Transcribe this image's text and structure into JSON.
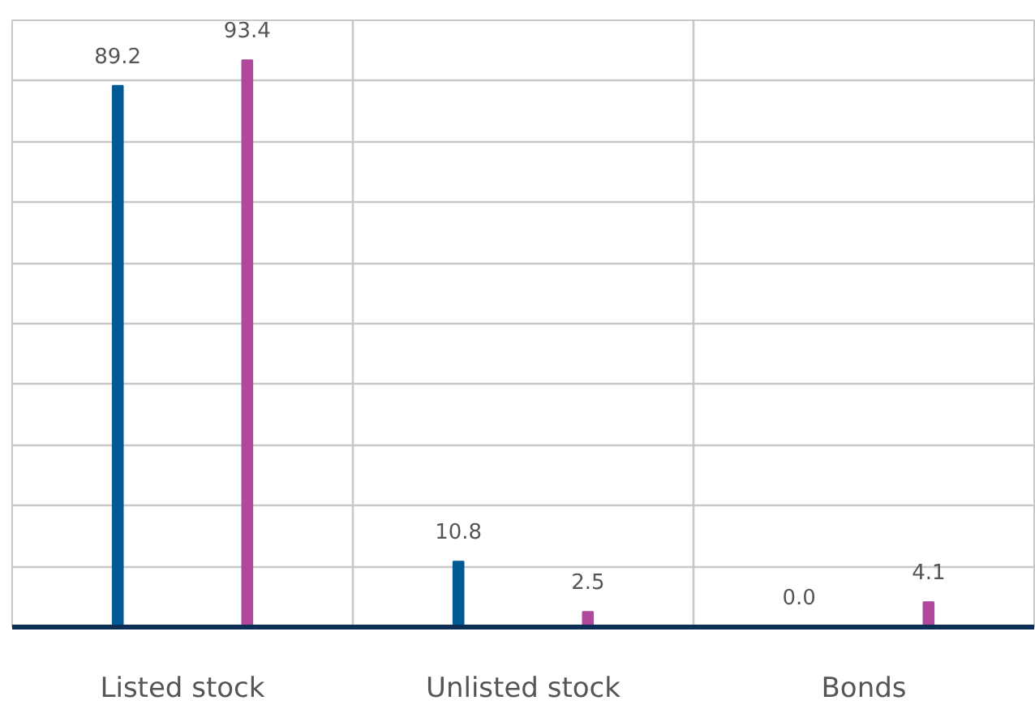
{
  "chart_data": {
    "type": "bar",
    "categories": [
      "Listed stock",
      "Unlisted stock",
      "Bonds"
    ],
    "series": [
      {
        "color": "#005a96",
        "values": [
          89.2,
          10.8,
          0
        ],
        "value_labels": [
          "89.2",
          "10.8",
          "0.0"
        ]
      },
      {
        "color": "#b0489b",
        "values": [
          93.4,
          2.5,
          4.1
        ],
        "value_labels": [
          "93.4",
          "2.5",
          "4.1"
        ]
      }
    ],
    "ylim": [
      0,
      100
    ],
    "yticks": [
      {
        "value": 0,
        "label": null
      },
      {
        "value": 10,
        "label": null
      },
      {
        "value": 20,
        "label": null
      },
      {
        "value": 30,
        "label": null
      },
      {
        "value": 40,
        "label": null
      },
      {
        "value": 50,
        "label": null
      },
      {
        "value": 60,
        "label": null
      },
      {
        "value": 70,
        "label": null
      },
      {
        "value": 80,
        "label": null
      },
      {
        "value": 90,
        "label": null
      },
      {
        "value": 100,
        "label": null
      }
    ],
    "grid": true,
    "tick_labels": "x"
  }
}
